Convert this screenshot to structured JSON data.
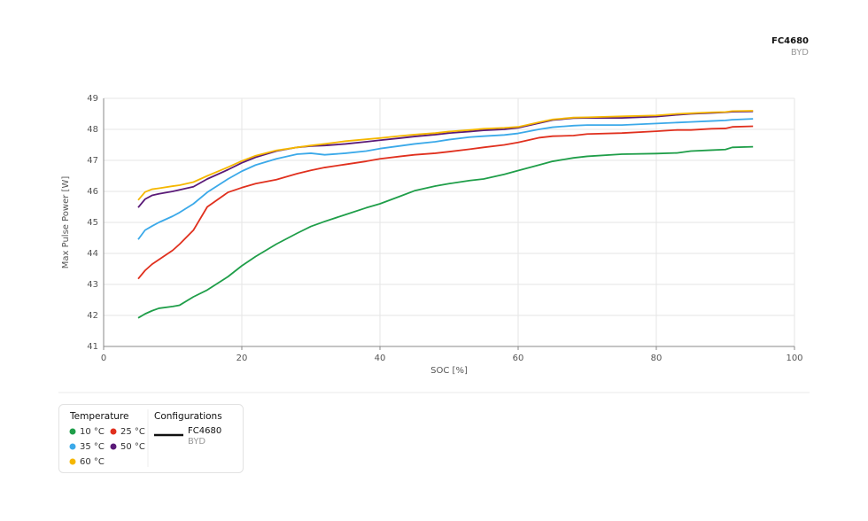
{
  "chart_data": {
    "type": "line",
    "configuration": {
      "name": "FC4680",
      "manufacturer": "BYD"
    },
    "xlabel": "SOC [%]",
    "ylabel": "Max Pulse Power [W]",
    "xlim": [
      0,
      100
    ],
    "xticks": [
      0,
      20,
      40,
      60,
      80,
      100
    ],
    "ylim": [
      41,
      49
    ],
    "yticks": [
      41,
      42,
      43,
      44,
      45,
      46,
      47,
      48,
      49
    ],
    "grid": true,
    "legend_title": "Temperature",
    "configurations_title": "Configurations",
    "x": [
      5,
      6,
      7,
      8,
      10,
      11,
      13,
      15,
      18,
      20,
      22,
      25,
      28,
      30,
      32,
      35,
      38,
      40,
      43,
      45,
      48,
      50,
      53,
      55,
      58,
      60,
      63,
      65,
      68,
      70,
      75,
      80,
      83,
      85,
      88,
      90,
      91,
      94
    ],
    "series": [
      {
        "name": "10 °C",
        "color": "#1f9e49",
        "values": [
          41.92,
          42.05,
          42.15,
          42.23,
          42.29,
          42.33,
          42.6,
          42.82,
          43.25,
          43.6,
          43.9,
          44.3,
          44.65,
          44.87,
          45.03,
          45.25,
          45.47,
          45.6,
          45.85,
          46.02,
          46.17,
          46.25,
          46.35,
          46.4,
          46.55,
          46.67,
          46.85,
          46.97,
          47.08,
          47.13,
          47.2,
          47.22,
          47.24,
          47.3,
          47.33,
          47.35,
          47.42,
          47.44
        ]
      },
      {
        "name": "25 °C",
        "color": "#e0301e",
        "values": [
          43.18,
          43.45,
          43.65,
          43.8,
          44.1,
          44.3,
          44.75,
          45.5,
          45.97,
          46.12,
          46.25,
          46.38,
          46.57,
          46.68,
          46.77,
          46.87,
          46.97,
          47.05,
          47.13,
          47.18,
          47.23,
          47.28,
          47.36,
          47.42,
          47.5,
          47.58,
          47.73,
          47.78,
          47.8,
          47.85,
          47.88,
          47.94,
          47.98,
          47.98,
          48.02,
          48.03,
          48.08,
          48.1
        ]
      },
      {
        "name": "35 °C",
        "color": "#3ba9e9",
        "values": [
          44.45,
          44.75,
          44.88,
          45.0,
          45.2,
          45.32,
          45.6,
          45.97,
          46.4,
          46.65,
          46.85,
          47.05,
          47.2,
          47.23,
          47.18,
          47.23,
          47.3,
          47.38,
          47.47,
          47.53,
          47.6,
          47.67,
          47.75,
          47.78,
          47.82,
          47.87,
          48.0,
          48.07,
          48.12,
          48.14,
          48.14,
          48.19,
          48.22,
          48.24,
          48.27,
          48.29,
          48.31,
          48.34
        ]
      },
      {
        "name": "50 °C",
        "color": "#5a1a78",
        "values": [
          45.48,
          45.75,
          45.87,
          45.92,
          46.0,
          46.05,
          46.15,
          46.4,
          46.7,
          46.92,
          47.1,
          47.3,
          47.42,
          47.46,
          47.48,
          47.53,
          47.6,
          47.65,
          47.72,
          47.77,
          47.83,
          47.88,
          47.93,
          47.97,
          48.0,
          48.05,
          48.2,
          48.3,
          48.36,
          48.37,
          48.37,
          48.41,
          48.47,
          48.5,
          48.53,
          48.55,
          48.57,
          48.58
        ]
      },
      {
        "name": "60 °C",
        "color": "#f5b700",
        "values": [
          45.72,
          45.98,
          46.07,
          46.1,
          46.17,
          46.2,
          46.3,
          46.5,
          46.78,
          46.98,
          47.15,
          47.32,
          47.42,
          47.48,
          47.53,
          47.62,
          47.68,
          47.72,
          47.79,
          47.83,
          47.88,
          47.93,
          47.98,
          48.02,
          48.05,
          48.08,
          48.23,
          48.32,
          48.38,
          48.39,
          48.42,
          48.45,
          48.5,
          48.52,
          48.55,
          48.56,
          48.59,
          48.6
        ]
      }
    ]
  }
}
